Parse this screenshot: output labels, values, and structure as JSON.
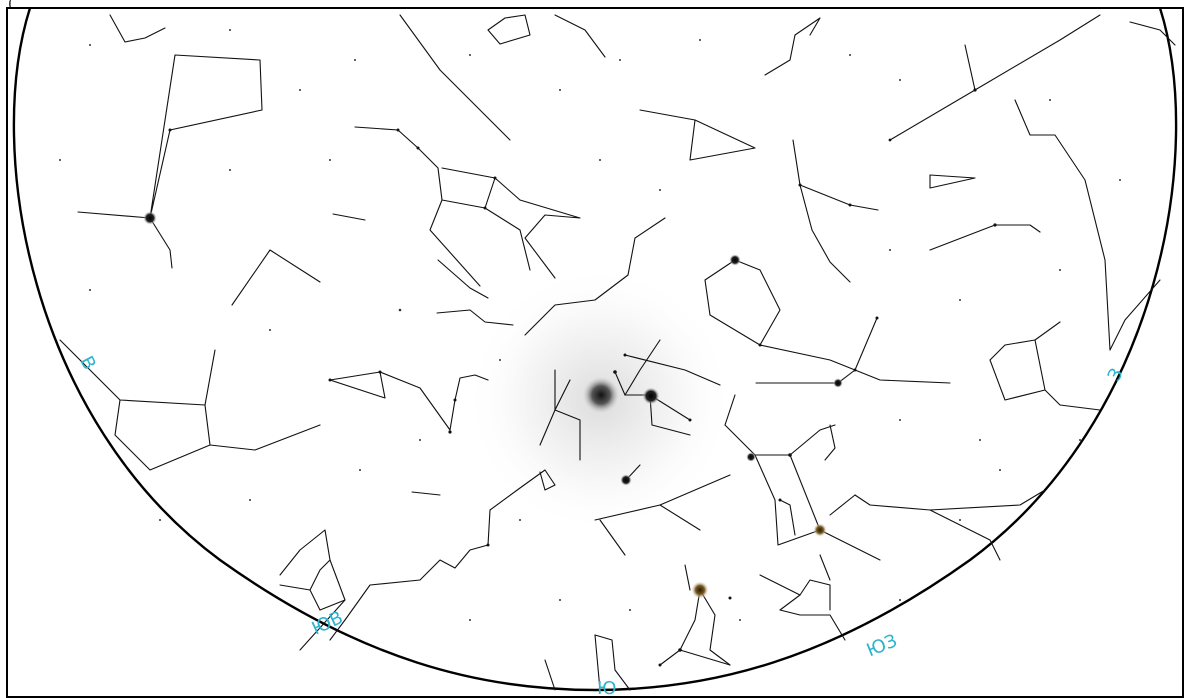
{
  "header": {
    "caption_fragment": "("
  },
  "directions": {
    "east": "В",
    "south_east": "ЮВ",
    "south": "Ю",
    "south_west": "ЮЗ",
    "west": "З"
  },
  "colors": {
    "direction_label": "#2bb3cf",
    "constellation_line": "#111111",
    "horizon": "#000000",
    "milky_way_glow": "#c8c8c8"
  },
  "icons": [
    "horizon-circle",
    "constellation-lines",
    "bright-star",
    "faint-star",
    "moon-glow"
  ]
}
